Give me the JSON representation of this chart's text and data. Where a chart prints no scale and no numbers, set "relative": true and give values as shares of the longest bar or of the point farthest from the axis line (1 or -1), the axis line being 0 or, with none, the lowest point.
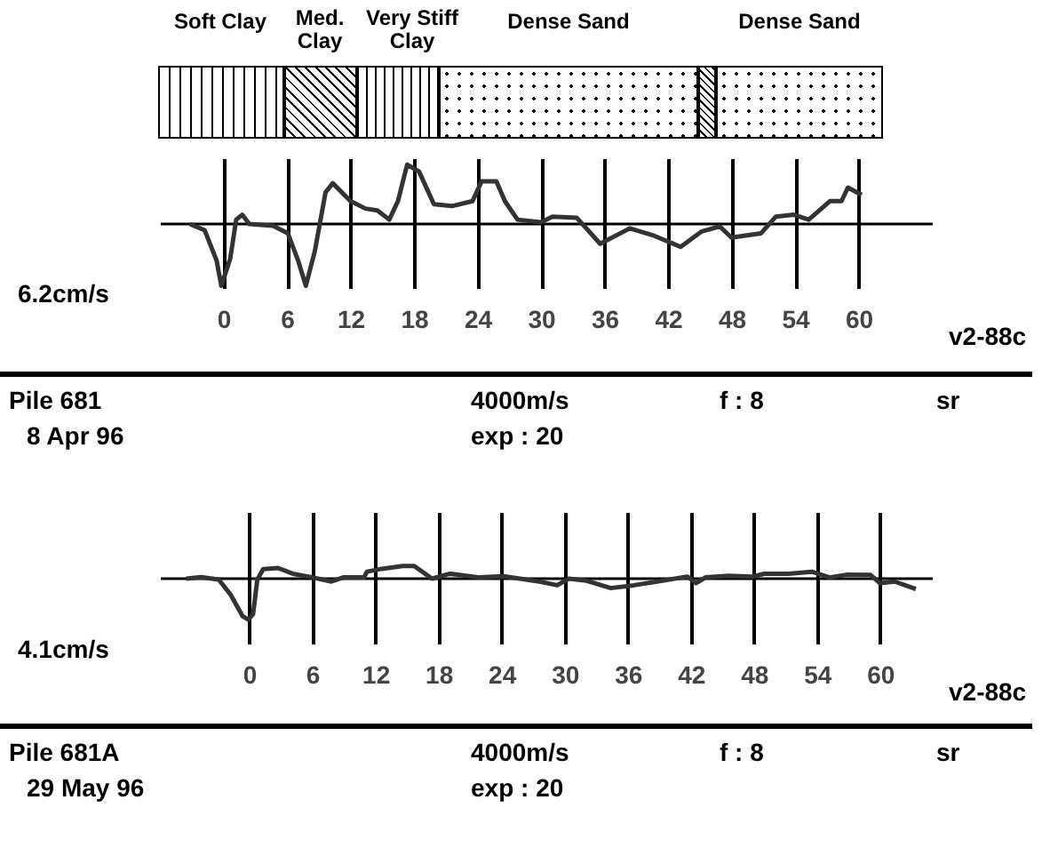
{
  "chart_data": [
    {
      "type": "other",
      "categories": [
        "Soft Clay",
        "Med.\nClay",
        "Very Stiff\nClay",
        "Dense Sand",
        null,
        "Dense Sand"
      ]
    },
    {
      "type": "line",
      "relative": true,
      "xlim": [
        -6,
        67
      ],
      "xticks": [
        0,
        6,
        12,
        18,
        24,
        30,
        36,
        42,
        48,
        54,
        60
      ],
      "grid": "x",
      "marker": "none",
      "line_style": "solid",
      "ylabel": "6.2cm/s",
      "annotations": [
        "v2-88c",
        "Pile  681",
        "4000m/s",
        "f : 8",
        "sr",
        "8  Apr  96",
        "exp : 20"
      ],
      "series": [
        {
          "color": "#333333",
          "x": [
            -3.26,
            -1.86,
            -0.73,
            -0.28,
            0.56,
            1.12,
            1.69,
            2.36,
            4.61,
            6.0,
            6.97,
            7.7,
            8.55,
            9.56,
            10.24,
            11.92,
            13.33,
            14.46,
            15.58,
            16.4,
            17.27,
            18.39,
            19.8,
            21.5,
            23.45,
            24.3,
            25.7,
            26.5,
            27.7,
            29.9,
            31.0,
            33.3,
            35.5,
            38.3,
            40.6,
            43.1,
            45.1,
            46.8,
            47.9,
            50.7,
            52.1,
            53.8,
            55.2,
            57.2,
            58.3,
            58.9,
            60.2
          ],
          "values": [
            0,
            -0.1,
            -0.59,
            -1,
            -0.56,
            0.07,
            0.15,
            0,
            -0.03,
            -0.15,
            -0.59,
            -1,
            -0.44,
            0.51,
            0.66,
            0.37,
            0.25,
            0.22,
            0.07,
            0.37,
            0.96,
            0.85,
            0.32,
            0.29,
            0.37,
            0.69,
            0.69,
            0.37,
            0.07,
            0.03,
            0.12,
            0.1,
            -0.32,
            -0.07,
            -0.19,
            -0.37,
            -0.12,
            -0.04,
            -0.22,
            -0.15,
            0.12,
            0.15,
            0.07,
            0.37,
            0.37,
            0.59,
            0.47
          ]
        }
      ]
    },
    {
      "type": "line",
      "relative": true,
      "xlim": [
        -8.5,
        65
      ],
      "xticks": [
        0,
        6,
        12,
        18,
        24,
        30,
        36,
        42,
        48,
        54,
        60
      ],
      "grid": "x",
      "marker": "none",
      "line_style": "solid",
      "ylabel": "4.1cm/s",
      "annotations": [
        "v2-88c",
        "Pile  681A",
        "4000m/s",
        "f : 8",
        "sr",
        "29  May  96",
        "exp : 20"
      ],
      "series": [
        {
          "color": "#333333",
          "x": [
            -6.09,
            -4.68,
            -2.99,
            -1.86,
            -0.73,
            -0.17,
            0.28,
            0.68,
            1.24,
            2.65,
            4.06,
            5.75,
            7.73,
            8.86,
            10.83,
            11.11,
            12.52,
            14.5,
            15.6,
            17.3,
            19.0,
            21.8,
            24.1,
            27.5,
            29.2,
            30.3,
            32.0,
            34.3,
            36.5,
            38.7,
            41.6,
            42.4,
            43.3,
            45.5,
            47.8,
            48.9,
            51.2,
            53.4,
            55.1,
            56.8,
            59.0,
            59.9,
            61.3,
            63.3
          ],
          "values": [
            0,
            0.04,
            -0.02,
            -0.39,
            -0.91,
            -1,
            -0.86,
            -0.02,
            0.23,
            0.26,
            0.12,
            0.04,
            -0.07,
            0.03,
            0.03,
            0.17,
            0.24,
            0.31,
            0.31,
            0,
            0.12,
            0.03,
            0.06,
            -0.07,
            -0.16,
            0,
            -0.05,
            -0.23,
            -0.16,
            -0.07,
            0.05,
            -0.11,
            0.03,
            0.07,
            0.05,
            0.12,
            0.12,
            0.17,
            0.03,
            0.1,
            0.09,
            -0.11,
            -0.07,
            -0.25
          ]
        }
      ]
    }
  ]
}
